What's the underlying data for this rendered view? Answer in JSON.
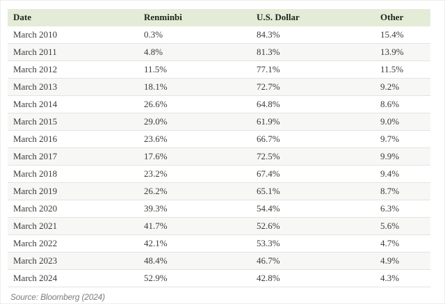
{
  "table": {
    "columns": [
      "Date",
      "Renminbi",
      "U.S. Dollar",
      "Other"
    ],
    "rows": [
      [
        "March 2010",
        "0.3%",
        "84.3%",
        "15.4%"
      ],
      [
        "March 2011",
        "4.8%",
        "81.3%",
        "13.9%"
      ],
      [
        "March 2012",
        "11.5%",
        "77.1%",
        "11.5%"
      ],
      [
        "March 2013",
        "18.1%",
        "72.7%",
        "9.2%"
      ],
      [
        "March 2014",
        "26.6%",
        "64.8%",
        "8.6%"
      ],
      [
        "March 2015",
        "29.0%",
        "61.9%",
        "9.0%"
      ],
      [
        "March 2016",
        "23.6%",
        "66.7%",
        "9.7%"
      ],
      [
        "March 2017",
        "17.6%",
        "72.5%",
        "9.9%"
      ],
      [
        "March 2018",
        "23.2%",
        "67.4%",
        "9.4%"
      ],
      [
        "March 2019",
        "26.2%",
        "65.1%",
        "8.7%"
      ],
      [
        "March 2020",
        "39.3%",
        "54.4%",
        "6.3%"
      ],
      [
        "March 2021",
        "41.7%",
        "52.6%",
        "5.6%"
      ],
      [
        "March 2022",
        "42.1%",
        "53.3%",
        "4.7%"
      ],
      [
        "March 2023",
        "48.4%",
        "46.7%",
        "4.9%"
      ],
      [
        "March 2024",
        "52.9%",
        "42.8%",
        "4.3%"
      ]
    ]
  },
  "source_note": "Source: Bloomberg (2024)",
  "colors": {
    "header_bg": "#e4ecd8",
    "header_text": "#20261a",
    "row_text": "#3a3a3a",
    "row_alt_bg": "#f7f7f6",
    "row_border": "#e3e3e1",
    "source_text": "#7d7d7d",
    "page_bg": "#ffffff"
  },
  "chart_data": {
    "type": "table",
    "title": "",
    "categories": [
      "March 2010",
      "March 2011",
      "March 2012",
      "March 2013",
      "March 2014",
      "March 2015",
      "March 2016",
      "March 2017",
      "March 2018",
      "March 2019",
      "March 2020",
      "March 2021",
      "March 2022",
      "March 2023",
      "March 2024"
    ],
    "series": [
      {
        "name": "Renminbi",
        "values": [
          0.3,
          4.8,
          11.5,
          18.1,
          26.6,
          29.0,
          23.6,
          17.6,
          23.2,
          26.2,
          39.3,
          41.7,
          42.1,
          48.4,
          52.9
        ]
      },
      {
        "name": "U.S. Dollar",
        "values": [
          84.3,
          81.3,
          77.1,
          72.7,
          64.8,
          61.9,
          66.7,
          72.5,
          67.4,
          65.1,
          54.4,
          52.6,
          53.3,
          46.7,
          42.8
        ]
      },
      {
        "name": "Other",
        "values": [
          15.4,
          13.9,
          11.5,
          9.2,
          8.6,
          9.0,
          9.7,
          9.9,
          9.4,
          8.7,
          6.3,
          5.6,
          4.7,
          4.9,
          4.3
        ]
      }
    ],
    "unit": "%",
    "annotation": "Source: Bloomberg (2024)",
    "legend_position": "none",
    "grid": false
  }
}
